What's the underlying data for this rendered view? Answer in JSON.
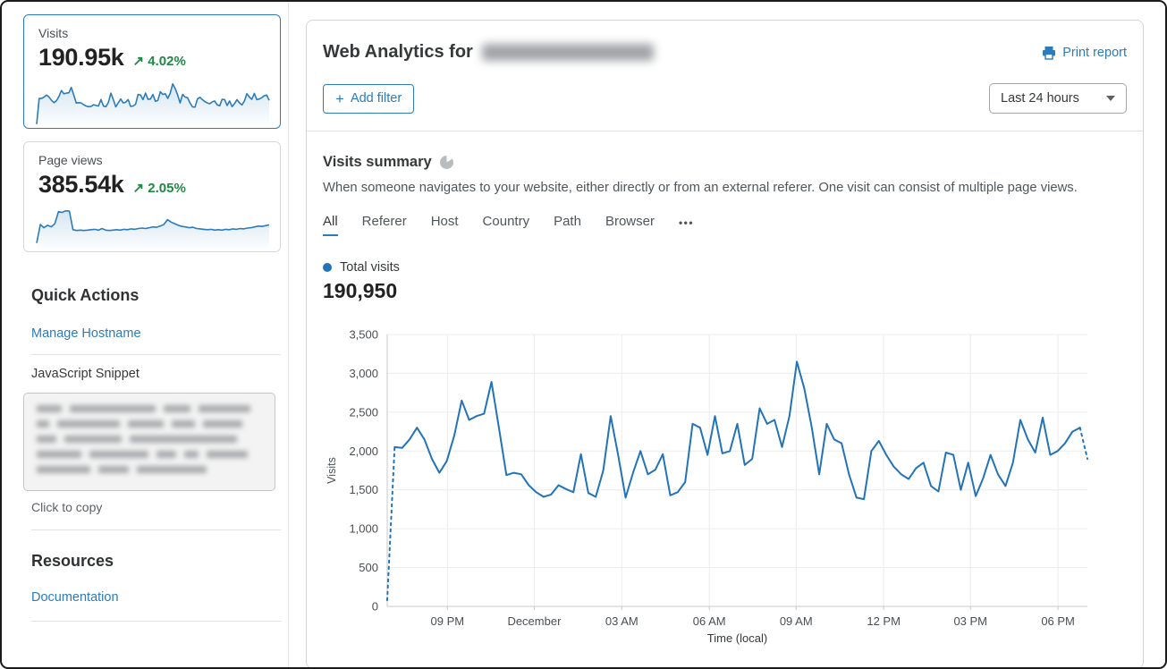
{
  "colors": {
    "accent": "#2c7cb9",
    "chart_line": "#2273b8",
    "positive_green": "#1e8a44",
    "grid": "#ececec",
    "axis": "#c9c9c9"
  },
  "sidebar": {
    "cards": [
      {
        "label": "Visits",
        "value": "190.95k",
        "arrow": "↗",
        "delta": "4.02%",
        "selected": true,
        "spark": [
          80,
          2050,
          2040,
          2150,
          2300,
          2150,
          1900,
          1720,
          1870,
          2200,
          2650,
          2400,
          2450,
          2480,
          2890,
          2300,
          1690,
          1720,
          1700,
          1560,
          1470,
          1410,
          1440,
          1560,
          1510,
          1470,
          1960,
          1460,
          1410,
          1750,
          2450,
          1950,
          1400,
          1720,
          2000,
          1700,
          1760,
          1960,
          1430,
          1470,
          1600,
          2350,
          2300,
          1950,
          2450,
          1970,
          2000,
          2350,
          1820,
          1900,
          2550,
          2350,
          2400,
          2050,
          2450,
          3150,
          2800,
          2300,
          1700,
          2350,
          2150,
          2100,
          1700,
          1400,
          1380,
          2000,
          2130,
          1950,
          1800,
          1700,
          1640,
          1780,
          1850,
          1550,
          1480,
          1980,
          1950,
          1500,
          1850,
          1420,
          1650,
          1950,
          1700,
          1550,
          1850,
          2400,
          2150,
          1980,
          2430,
          1950,
          2000,
          2100,
          2250,
          2300,
          1900
        ]
      },
      {
        "label": "Page views",
        "value": "385.54k",
        "arrow": "↗",
        "delta": "2.05%",
        "selected": false,
        "spark": [
          700,
          3000,
          2600,
          2900,
          2700,
          3100,
          4600,
          4500,
          4700,
          4650,
          2350,
          2250,
          2300,
          2250,
          2300,
          2350,
          2400,
          2300,
          2500,
          2300,
          2250,
          2300,
          2350,
          2300,
          2400,
          2350,
          2450,
          2400,
          2500,
          2550,
          2500,
          2600,
          2700,
          2650,
          2800,
          3000,
          3600,
          3300,
          3100,
          2900,
          2750,
          2700,
          2600,
          2650,
          2500,
          2450,
          2400,
          2350,
          2400,
          2300,
          2350,
          2300,
          2400,
          2350,
          2450,
          2400,
          2500,
          2450,
          2550,
          2600,
          2700,
          2800,
          2750,
          2850,
          2950
        ]
      }
    ],
    "quick_actions": {
      "title": "Quick Actions",
      "manage_link": "Manage Hostname",
      "snippet_label": "JavaScript Snippet",
      "copy_hint": "Click to copy"
    },
    "resources": {
      "title": "Resources",
      "doc_link": "Documentation"
    }
  },
  "header": {
    "title": "Web Analytics for",
    "print_label": "Print report",
    "add_filter": {
      "icon": "+",
      "label": "Add filter"
    },
    "time_range": "Last 24 hours"
  },
  "summary": {
    "title": "Visits summary",
    "description": "When someone navigates to your website, either directly or from an external referer. One visit can consist of multiple page views.",
    "tabs": [
      "All",
      "Referer",
      "Host",
      "Country",
      "Path",
      "Browser"
    ],
    "active_tab": "All",
    "more_label": "•••",
    "legend_label": "Total visits",
    "total_value": "190,950"
  },
  "chart_data": {
    "type": "line",
    "title": "",
    "xlabel": "Time (local)",
    "ylabel": "Visits",
    "ylim": [
      0,
      3500
    ],
    "y_tick_labels": [
      "0",
      "500",
      "1,000",
      "1,500",
      "2,000",
      "2,500",
      "3,000",
      "3,500"
    ],
    "x_ticks": [
      {
        "label": "09 PM",
        "f": 0.086
      },
      {
        "label": "December",
        "f": 0.21
      },
      {
        "label": "03 AM",
        "f": 0.335
      },
      {
        "label": "06 AM",
        "f": 0.46
      },
      {
        "label": "09 AM",
        "f": 0.584
      },
      {
        "label": "12 PM",
        "f": 0.709
      },
      {
        "label": "03 PM",
        "f": 0.833
      },
      {
        "label": "06 PM",
        "f": 0.958
      }
    ],
    "grid": true,
    "legend_position": "top-left",
    "series": [
      {
        "name": "Total visits",
        "color": "#2273b8",
        "dashed_head_segments": 1,
        "dashed_tail_segments": 1,
        "values": [
          80,
          2050,
          2040,
          2150,
          2300,
          2150,
          1900,
          1720,
          1870,
          2200,
          2650,
          2400,
          2450,
          2480,
          2890,
          2300,
          1690,
          1720,
          1700,
          1560,
          1470,
          1410,
          1440,
          1560,
          1510,
          1470,
          1960,
          1460,
          1410,
          1750,
          2450,
          1950,
          1400,
          1720,
          2000,
          1700,
          1760,
          1960,
          1430,
          1470,
          1600,
          2350,
          2300,
          1950,
          2450,
          1970,
          2000,
          2350,
          1820,
          1900,
          2550,
          2350,
          2400,
          2050,
          2450,
          3150,
          2800,
          2300,
          1700,
          2350,
          2150,
          2100,
          1700,
          1400,
          1380,
          2000,
          2130,
          1950,
          1800,
          1700,
          1640,
          1780,
          1850,
          1550,
          1480,
          1980,
          1950,
          1500,
          1850,
          1420,
          1650,
          1950,
          1700,
          1550,
          1850,
          2400,
          2150,
          1980,
          2430,
          1950,
          2000,
          2100,
          2250,
          2300,
          1900
        ]
      }
    ]
  }
}
